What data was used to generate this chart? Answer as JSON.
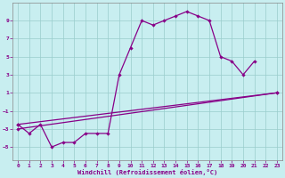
{
  "xlabel": "Windchill (Refroidissement éolien,°C)",
  "background_color": "#c8eef0",
  "line_color": "#880088",
  "grid_color": "#99cccc",
  "line1_x": [
    0,
    1,
    2,
    3,
    4,
    5,
    6,
    7,
    8,
    9,
    10,
    11,
    12,
    13,
    14,
    15,
    16,
    17,
    18,
    19,
    20,
    21
  ],
  "line1_y": [
    -2.5,
    -3.5,
    -2.5,
    -5.0,
    -4.5,
    -4.5,
    -3.5,
    -3.5,
    -3.5,
    3.0,
    6.0,
    9.0,
    8.5,
    9.0,
    9.5,
    10.0,
    9.5,
    9.0,
    5.0,
    4.5,
    3.0,
    4.5
  ],
  "line2_x": [
    0,
    23
  ],
  "line2_y": [
    -2.5,
    1.0
  ],
  "line3_x": [
    0,
    23
  ],
  "line3_y": [
    -3.0,
    1.0
  ],
  "ylim": [
    -6.5,
    11.0
  ],
  "xlim": [
    -0.5,
    23.5
  ],
  "yticks": [
    -5,
    -3,
    -1,
    1,
    3,
    5,
    7,
    9
  ],
  "xticks": [
    0,
    1,
    2,
    3,
    4,
    5,
    6,
    7,
    8,
    9,
    10,
    11,
    12,
    13,
    14,
    15,
    16,
    17,
    18,
    19,
    20,
    21,
    22,
    23
  ]
}
